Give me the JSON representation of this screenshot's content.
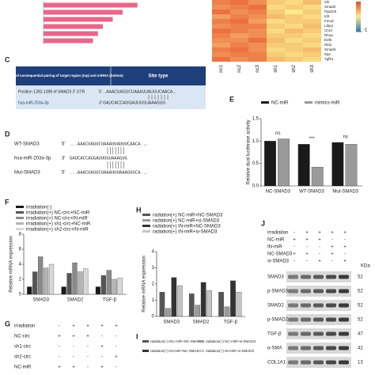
{
  "panel_labels": [
    "C",
    "D",
    "E",
    "F",
    "G",
    "H",
    "I",
    "J"
  ],
  "table_c": {
    "header": [
      "Predicted consequential pairing of target region (top) and miRNA (bottom)",
      "Site type"
    ],
    "rows": [
      [
        "Position 1392-1398 of SMAD3 3' UTR",
        "5' ...AAACUAGUCUAAAUUAUUUCAACA..."
      ],
      [
        "hsa-miR-203a-3p",
        "3' GAUCACCAGGAUUUGUAAAGUG"
      ]
    ]
  },
  "sequences_d": [
    {
      "name": "WT-SMAD3",
      "strand": "5'",
      "seq": "...AAACUAGUCUAAAUUAUUUCAACA..."
    },
    {
      "name": "hsa-miR-203a-3p",
      "strand": "3'",
      "seq": "GAUCACCAGGAUUUGUAAAGUG"
    },
    {
      "name": "Mut-SMAD3",
      "strand": "5'",
      "seq": "...AAACUAGUCUAAAUUUAAAGUGCA..."
    }
  ],
  "chart_data": [
    {
      "type": "heatmap",
      "rows": [
        "Id2",
        "Smad2",
        "Ppp3cb",
        "Id3",
        "Fmod",
        "Ltbp1",
        "Chrd",
        "Rhoa",
        "E2f5",
        "Nbl1",
        "Smad4",
        "Myc",
        "Tgfb1"
      ],
      "columns": [
        "nc1",
        "nc2",
        "nc3",
        "sh1",
        "sh2",
        "sh3"
      ],
      "values": [
        [
          0.7,
          0.8,
          0.6,
          0.2,
          0.1,
          0.3
        ],
        [
          0.6,
          0.7,
          0.8,
          0.1,
          0.2,
          0.1
        ],
        [
          0.8,
          0.6,
          0.7,
          0.2,
          0.0,
          0.2
        ],
        [
          0.5,
          0.7,
          0.6,
          0.3,
          0.2,
          0.1
        ],
        [
          0.7,
          0.8,
          0.5,
          0.1,
          0.2,
          0.2
        ],
        [
          0.6,
          0.7,
          0.7,
          0.2,
          0.1,
          0.3
        ],
        [
          0.8,
          0.7,
          0.6,
          0.1,
          0.3,
          0.2
        ],
        [
          0.7,
          0.5,
          0.6,
          0.2,
          0.2,
          0.1
        ],
        [
          0.6,
          0.6,
          0.8,
          0.3,
          0.1,
          0.2
        ],
        [
          0.5,
          0.7,
          0.6,
          0.2,
          0.2,
          0.1
        ],
        [
          0.7,
          0.8,
          0.6,
          0.1,
          0.2,
          0.3
        ],
        [
          0.6,
          0.7,
          0.7,
          0.2,
          0.1,
          0.2
        ],
        [
          0.8,
          0.6,
          0.7,
          0.3,
          0.2,
          0.1
        ]
      ],
      "clim": [
        -1,
        1
      ],
      "colorbar_ticks": [
        -1
      ]
    },
    {
      "type": "hbar",
      "categories": [
        null,
        null,
        null,
        null,
        null,
        null
      ],
      "values": [
        0.95,
        0.8,
        0.7,
        0.6,
        0.55,
        0.5
      ],
      "xlim": [
        0,
        1
      ],
      "color": "#e8668a"
    },
    {
      "type": "bar",
      "y_label": "Relative dual luciferase activity",
      "categories": [
        "NC-SMAD3",
        "WT-SMAD3",
        "Mut-SMAD3"
      ],
      "series": [
        {
          "name": "NC-miR",
          "color": "#1a1a1a",
          "values": [
            1.0,
            0.93,
            0.97
          ]
        },
        {
          "name": "mimics-miR",
          "color": "#9a9a9a",
          "values": [
            1.05,
            0.42,
            0.93
          ]
        }
      ],
      "annotations": [
        "ns",
        "***",
        "ns"
      ],
      "ylim": [
        0,
        1.5
      ],
      "yticks": [
        {
          "value": 0,
          "label": "0.0"
        },
        0.5,
        {
          "value": 1,
          "label": "1.0"
        },
        1.5
      ]
    },
    {
      "type": "bar",
      "y_label": "Relative mRNA expression",
      "categories": [
        "SMAD3",
        "SMAD2",
        "TGF-β"
      ],
      "series": [
        {
          "name": "irradiation(-)",
          "color": "#1a1a1a",
          "values": [
            1,
            1,
            1
          ]
        },
        {
          "name": "irradiation(+) NC-circ+NC-miR",
          "color": "#555555",
          "values": [
            3,
            2.8,
            2.5
          ]
        },
        {
          "name": "irradiation(+) NC-circ+IN-miR",
          "color": "#8a8a8a",
          "values": [
            5,
            4.2,
            3.2
          ]
        },
        {
          "name": "irradiation(+) sh1-circ+NC-miR",
          "color": "#b5b5b5",
          "values": [
            3.5,
            3,
            2
          ]
        },
        {
          "name": "irradiation(+) sh2-circ+IN-miR",
          "color": "#d8d8d8",
          "values": [
            4,
            3.4,
            2.2
          ]
        }
      ],
      "ylim": [
        0,
        8
      ],
      "yticks": [
        0,
        2,
        4,
        6,
        8
      ]
    },
    {
      "type": "bar",
      "y_label": "Relative mRNA expression",
      "categories": [
        "SMAD3",
        "SMAD2",
        "TGF-β"
      ],
      "series": [
        {
          "name": "radiation(+) NC-miR+NC-SMAD3",
          "color": "#555555",
          "values": [
            1.5,
            1.4,
            1.5
          ]
        },
        {
          "name": "radiation(+) NC-miR+si-SMAD3",
          "color": "#9a9a9a",
          "values": [
            0.5,
            0.7,
            0.6
          ]
        },
        {
          "name": "radiation(+) IN-miR+NC-SMAD3",
          "color": "#333333",
          "values": [
            2.4,
            2.1,
            2.2
          ]
        },
        {
          "name": "radiation(+) IN-miR+si-SMAD3",
          "color": "#c4c4c4",
          "values": [
            1.9,
            1.6,
            1.5
          ]
        }
      ],
      "ylim": [
        0,
        4
      ],
      "yticks": [
        0,
        1,
        2,
        3,
        4
      ]
    }
  ],
  "panel_g": {
    "rows": [
      {
        "name": "irradiation",
        "signs": [
          "-",
          "+",
          "+",
          "+",
          "+"
        ]
      },
      {
        "name": "NC-circ",
        "signs": [
          "+",
          "+",
          "+",
          "-",
          "-"
        ]
      },
      {
        "name": "sh1-circ",
        "signs": [
          "-",
          "-",
          "-",
          "+",
          "-"
        ]
      },
      {
        "name": "sh2-circ",
        "signs": [
          "-",
          "-",
          "-",
          "-",
          "+"
        ]
      },
      {
        "name": "NC-miR",
        "signs": [
          "+",
          "+",
          "-",
          "+",
          "-"
        ]
      }
    ]
  },
  "panel_i": {
    "legend": [
      "radiation(+) NC-miR+NC-SMAD3",
      "radiation(+) NC-miR+si-SMAD3",
      "radiation(+) IN-miR+NC-SMAD3",
      "radiation(+) IN-miR+si-SMAD3"
    ]
  },
  "western_j": {
    "conditions": [
      {
        "name": "irradiation",
        "signs": [
          "-",
          "+",
          "+",
          "+",
          "+"
        ]
      },
      {
        "name": "NC-miR",
        "signs": [
          "+",
          "+",
          "+",
          "-",
          "-"
        ]
      },
      {
        "name": "IN-miR",
        "signs": [
          "-",
          "-",
          "-",
          "+",
          "+"
        ]
      },
      {
        "name": "NC-SMAD3",
        "signs": [
          "+",
          "+",
          "-",
          "+",
          "-"
        ]
      },
      {
        "name": "si-SMAD3",
        "signs": [
          "-",
          "-",
          "+",
          "-",
          "+"
        ]
      }
    ],
    "unit": "KDa",
    "proteins": [
      {
        "name": "SMAD3",
        "kda": 52
      },
      {
        "name": "p-SMAD3",
        "kda": 52
      },
      {
        "name": "SMAD2",
        "kda": 52
      },
      {
        "name": "p-SMAD2",
        "kda": 52
      },
      {
        "name": "TGF-β",
        "kda": 47
      },
      {
        "name": "α-SMA",
        "kda": 42
      },
      {
        "name": "COL1A1",
        "kda": 13
      }
    ]
  }
}
